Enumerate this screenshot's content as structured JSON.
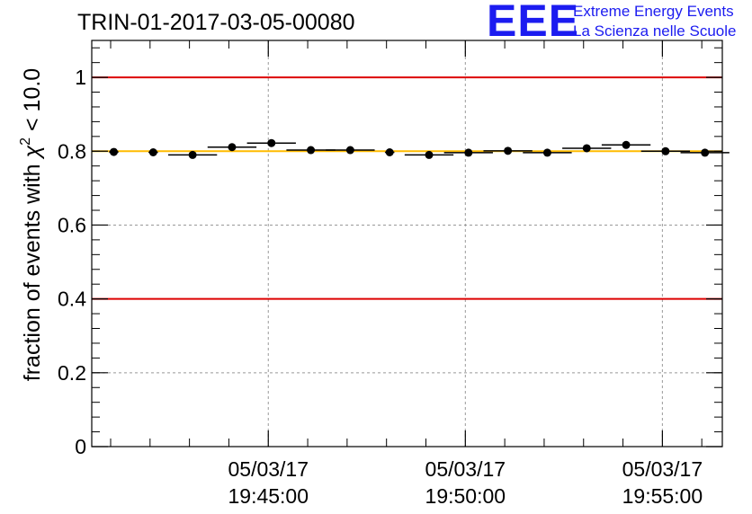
{
  "chart_data": {
    "type": "scatter",
    "title": "TRIN-01-2017-03-05-00080",
    "ylabel_prefix": "fraction of events with ",
    "ylabel_symbol": "χ",
    "ylabel_sup": "2",
    "ylabel_suffix": " < 10.0",
    "xlabel": "",
    "ylim": [
      0,
      1.1
    ],
    "y_ticks": [
      0,
      0.2,
      0.4,
      0.6,
      0.8,
      1
    ],
    "y_tick_labels": [
      "0",
      "0.2",
      "0.4",
      "0.6",
      "0.8",
      "1"
    ],
    "x_range_minutes": [
      41.0,
      57.0
    ],
    "x_tick_dates": [
      "05/03/17",
      "05/03/17",
      "05/03/17"
    ],
    "x_tick_times": [
      "19:45:00",
      "19:50:00",
      "19:55:00"
    ],
    "x_major_ticks_minutes": [
      45,
      50,
      55
    ],
    "x_minor_ticks_minutes": [
      41,
      42,
      43,
      44,
      46,
      47,
      48,
      49,
      51,
      52,
      53,
      54,
      56,
      57
    ],
    "grid": true,
    "reference_lines": [
      {
        "y": 1.0,
        "color": "#dd0000"
      },
      {
        "y": 0.4,
        "color": "#dd0000"
      },
      {
        "y": 0.8,
        "color": "#ffbb00"
      }
    ],
    "points": [
      {
        "x": 41.08,
        "y": 0.798,
        "xerr": 0.12
      },
      {
        "x": 42.08,
        "y": 0.797,
        "xerr": 0.12
      },
      {
        "x": 43.08,
        "y": 0.79,
        "xerr": 0.62
      },
      {
        "x": 44.08,
        "y": 0.811,
        "xerr": 0.62
      },
      {
        "x": 45.08,
        "y": 0.822,
        "xerr": 0.62
      },
      {
        "x": 46.08,
        "y": 0.803,
        "xerr": 0.62
      },
      {
        "x": 47.08,
        "y": 0.803,
        "xerr": 0.62
      },
      {
        "x": 48.08,
        "y": 0.797,
        "xerr": 0.12
      },
      {
        "x": 49.08,
        "y": 0.79,
        "xerr": 0.62
      },
      {
        "x": 50.08,
        "y": 0.796,
        "xerr": 0.62
      },
      {
        "x": 51.08,
        "y": 0.801,
        "xerr": 0.62
      },
      {
        "x": 52.08,
        "y": 0.796,
        "xerr": 0.62
      },
      {
        "x": 53.08,
        "y": 0.808,
        "xerr": 0.62
      },
      {
        "x": 54.08,
        "y": 0.817,
        "xerr": 0.62
      },
      {
        "x": 55.08,
        "y": 0.8,
        "xerr": 0.62
      },
      {
        "x": 56.08,
        "y": 0.796,
        "xerr": 0.62
      }
    ]
  },
  "logo": {
    "mark": "EEE",
    "line1": "Extreme Energy Events",
    "line2": "La Scienza nelle Scuole",
    "color": "#1c1cf0"
  }
}
